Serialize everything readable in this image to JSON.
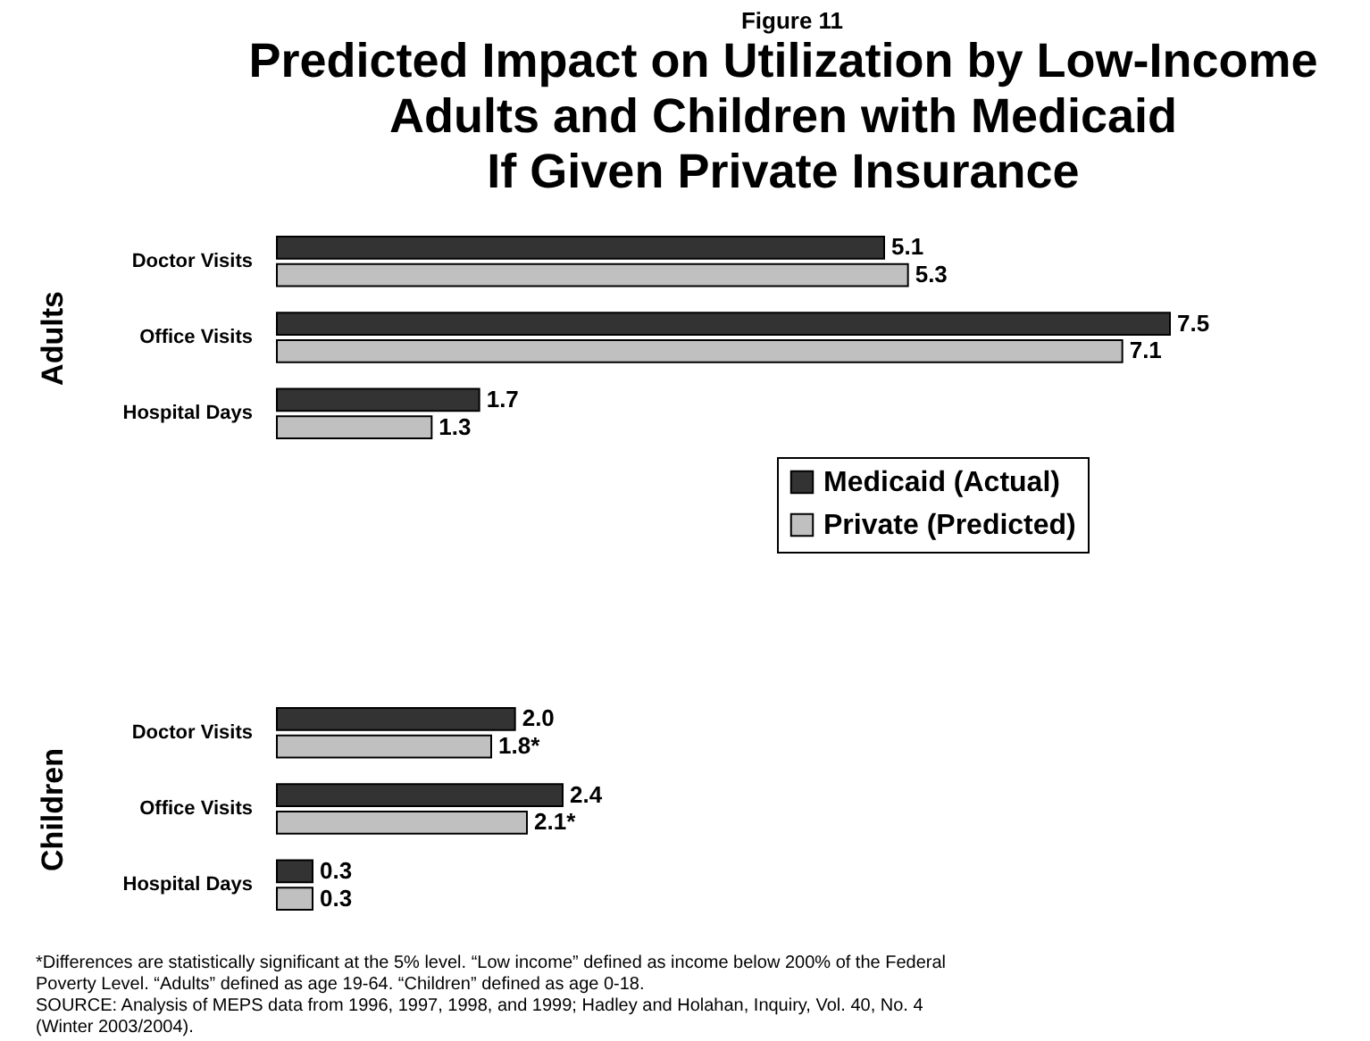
{
  "chart_data": [
    {
      "type": "bar",
      "orientation": "horizontal",
      "subtitle": "Figure 11",
      "title": "Predicted Impact on Utilization by Low-Income\nAdults and Children with Medicaid\nIf Given Private Insurance",
      "ylabel": "Adults",
      "categories": [
        "Doctor Visits",
        "Office Visits",
        "Hospital Days"
      ],
      "data_labels": true,
      "legend": "bottom right",
      "series": [
        {
          "name": "Medicaid (Actual)",
          "color": "#333333",
          "values": [
            5.1,
            7.5,
            1.7
          ]
        },
        {
          "name": "Private (Predicted)",
          "color": "#c0c0c0",
          "values": [
            5.3,
            7.1,
            1.3
          ]
        }
      ]
    },
    {
      "type": "bar",
      "orientation": "horizontal",
      "ylabel": "Children",
      "categories": [
        "Doctor Visits",
        "Office Visits",
        "Hospital Days"
      ],
      "series": [
        {
          "color": "#333333",
          "values": [
            2.0,
            2.4,
            0.3
          ],
          "value_labels": [
            "2.0",
            "2.4",
            "0.3"
          ]
        },
        {
          "color": "#c0c0c0",
          "values": [
            1.8,
            2.1,
            0.3
          ],
          "value_labels": [
            "1.8*",
            "2.1*",
            "0.3"
          ]
        }
      ],
      "annotations": [
        "*Differences are statistically significant at the 5% level.  “Low income” defined as income below 200% of the Federal Poverty Level.  “Adults” defined as age 19-64.  “Children” defined as age 0-18.",
        "SOURCE: Analysis of MEPS data from 1996, 1997, 1998, and 1999; Hadley and Holahan, Inquiry, Vol. 40, No. 4 (Winter 2003/2004)."
      ]
    }
  ]
}
